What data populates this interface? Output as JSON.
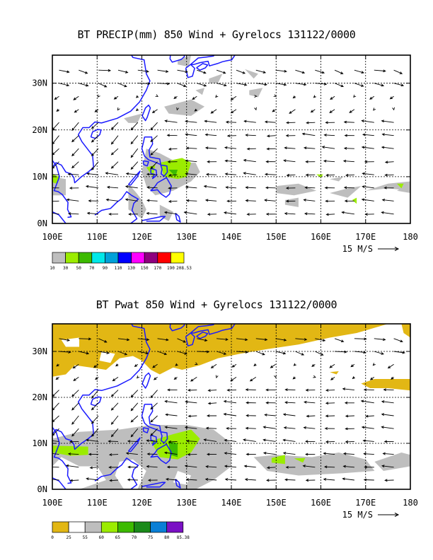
{
  "chart_data": [
    {
      "type": "map",
      "title": "BT PRECIP(mm) 850 Wind + Gyrelocs 131122/0000",
      "x_ticks": [
        "100E",
        "110E",
        "120E",
        "130E",
        "140E",
        "150E",
        "160E",
        "170E",
        "180"
      ],
      "y_ticks": [
        "0N",
        "10N",
        "20N",
        "30N"
      ],
      "xlim": [
        100,
        180
      ],
      "ylim": [
        0,
        36
      ],
      "grid": true,
      "wind_reference": "15 M/S",
      "colorbar": {
        "colors": [
          "#bebebe",
          "#9bec00",
          "#3cba00",
          "#00e8e8",
          "#00a0d8",
          "#0000ff",
          "#ff00ff",
          "#8e007e",
          "#ff0000",
          "#ffff00"
        ],
        "labels": [
          "10",
          "30",
          "50",
          "70",
          "90",
          "110",
          "130",
          "150",
          "170",
          "190",
          "208.53"
        ]
      }
    },
    {
      "type": "map",
      "title": "BT Pwat 850 Wind + Gyrelocs 131122/0000",
      "x_ticks": [
        "100E",
        "110E",
        "120E",
        "130E",
        "140E",
        "150E",
        "160E",
        "170E",
        "180"
      ],
      "y_ticks": [
        "0N",
        "10N",
        "20N",
        "30N"
      ],
      "xlim": [
        100,
        180
      ],
      "ylim": [
        0,
        36
      ],
      "grid": true,
      "wind_reference": "15 M/S",
      "colorbar": {
        "colors": [
          "#e2b714",
          "#ffffff",
          "#bebebe",
          "#9bec00",
          "#3cba00",
          "#1a8a1a",
          "#0a7fd6",
          "#7a10c4"
        ],
        "labels": [
          "0",
          "25",
          "55",
          "60",
          "65",
          "70",
          "75",
          "80",
          "85.38"
        ]
      }
    }
  ]
}
